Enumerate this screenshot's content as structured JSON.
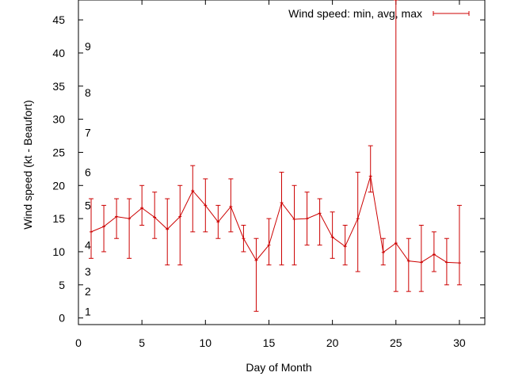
{
  "chart_data": {
    "type": "line",
    "xlabel": "Day of Month",
    "ylabel": "Wind speed (kt - Beaufort)",
    "xlim": [
      0,
      32
    ],
    "ylim": [
      -1,
      48
    ],
    "x_ticks": [
      0,
      5,
      10,
      15,
      20,
      25,
      30
    ],
    "y_ticks": [
      0,
      5,
      10,
      15,
      20,
      25,
      30,
      35,
      40,
      45
    ],
    "beaufort_scale": [
      {
        "label": "1",
        "kt": 1
      },
      {
        "label": "2",
        "kt": 4
      },
      {
        "label": "3",
        "kt": 7
      },
      {
        "label": "4",
        "kt": 11
      },
      {
        "label": "5",
        "kt": 17
      },
      {
        "label": "6",
        "kt": 22
      },
      {
        "label": "7",
        "kt": 28
      },
      {
        "label": "8",
        "kt": 34
      },
      {
        "label": "9",
        "kt": 41
      }
    ],
    "legend": {
      "position": "top-right",
      "label": "Wind speed: min, avg, max"
    },
    "color": "#cc0000",
    "series": [
      {
        "name": "Wind speed: min, avg, max",
        "x": [
          1,
          2,
          3,
          4,
          5,
          6,
          7,
          8,
          9,
          10,
          11,
          12,
          13,
          14,
          15,
          16,
          17,
          18,
          19,
          20,
          21,
          22,
          23,
          24,
          25,
          26,
          27,
          28,
          29,
          30
        ],
        "avg": [
          13,
          13.8,
          15.3,
          15,
          16.6,
          15.2,
          13.4,
          15.3,
          19.2,
          17,
          14.5,
          16.8,
          12,
          8.7,
          11,
          17.4,
          14.9,
          15,
          15.8,
          12.2,
          10.8,
          15,
          21.4,
          9.9,
          11.3,
          8.6,
          8.4,
          9.6,
          8.4,
          8.3
        ],
        "min": [
          9,
          10,
          12,
          9,
          14,
          12,
          8,
          8,
          13,
          13,
          12,
          13,
          10,
          1,
          8,
          8,
          8,
          11,
          11,
          9,
          8,
          7,
          19,
          8,
          4,
          4,
          4,
          7,
          5,
          5
        ],
        "max": [
          18,
          17,
          18,
          18,
          20,
          19,
          18,
          20,
          23,
          21,
          17,
          21,
          14,
          12,
          15,
          22,
          20,
          19,
          18,
          16,
          14,
          22,
          26,
          12,
          48,
          12,
          14,
          13,
          12,
          17
        ]
      }
    ]
  }
}
